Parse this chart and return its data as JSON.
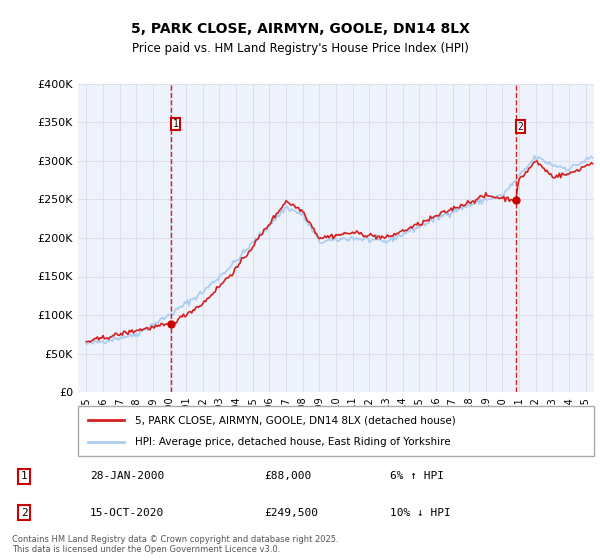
{
  "title_line1": "5, PARK CLOSE, AIRMYN, GOOLE, DN14 8LX",
  "title_line2": "Price paid vs. HM Land Registry's House Price Index (HPI)",
  "legend_line1": "5, PARK CLOSE, AIRMYN, GOOLE, DN14 8LX (detached house)",
  "legend_line2": "HPI: Average price, detached house, East Riding of Yorkshire",
  "footnote": "Contains HM Land Registry data © Crown copyright and database right 2025.\nThis data is licensed under the Open Government Licence v3.0.",
  "sale1_label": "1",
  "sale1_date": "28-JAN-2000",
  "sale1_price": "£88,000",
  "sale1_hpi": "6% ↑ HPI",
  "sale2_label": "2",
  "sale2_date": "15-OCT-2020",
  "sale2_price": "£249,500",
  "sale2_hpi": "10% ↓ HPI",
  "sale1_x": 2000.07,
  "sale1_y": 88000,
  "sale2_x": 2020.79,
  "sale2_y": 249500,
  "ylim_min": 0,
  "ylim_max": 400000,
  "xlim_min": 1994.5,
  "xlim_max": 2025.5,
  "yticks": [
    0,
    50000,
    100000,
    150000,
    200000,
    250000,
    300000,
    350000,
    400000
  ],
  "ytick_labels": [
    "£0",
    "£50K",
    "£100K",
    "£150K",
    "£200K",
    "£250K",
    "£300K",
    "£350K",
    "£400K"
  ],
  "xticks": [
    1995,
    1996,
    1997,
    1998,
    1999,
    2000,
    2001,
    2002,
    2003,
    2004,
    2005,
    2006,
    2007,
    2008,
    2009,
    2010,
    2011,
    2012,
    2013,
    2014,
    2015,
    2016,
    2017,
    2018,
    2019,
    2020,
    2021,
    2022,
    2023,
    2024,
    2025
  ],
  "line_color_red": "#d42020",
  "line_color_blue": "#aaccee",
  "grid_color": "#ddddee",
  "bg_color": "#eef2fa",
  "plot_bg": "#eef2fa",
  "sale_marker_color": "#cc0000",
  "vline_color": "#cc0000",
  "box_edge_color": "#cc0000"
}
